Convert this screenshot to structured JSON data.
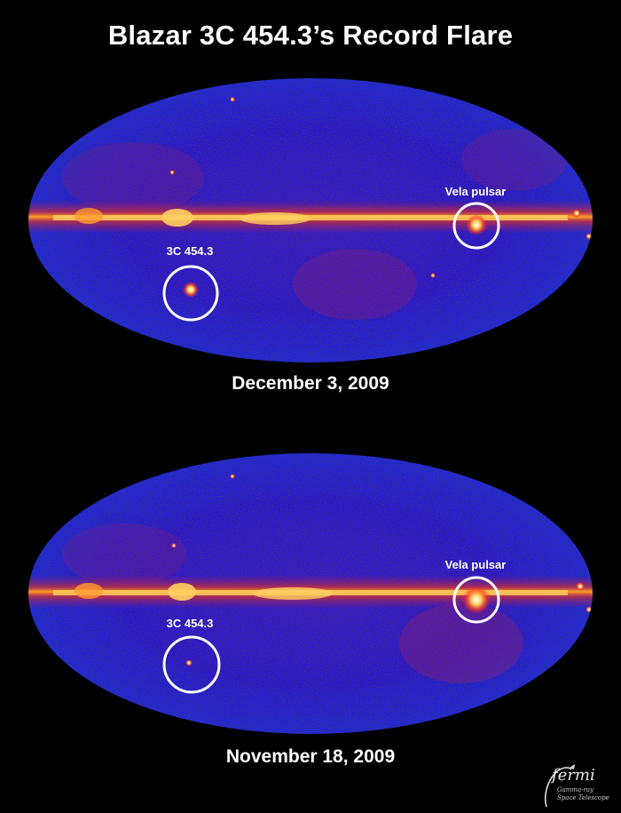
{
  "title": "Blazar 3C 454.3’s Record Flare",
  "panels": [
    {
      "date": "December 3, 2009",
      "labels": {
        "blazar": "3C 454.3",
        "pulsar": "Vela pulsar"
      }
    },
    {
      "date": "November 18, 2009",
      "labels": {
        "blazar": "3C 454.3",
        "pulsar": "Vela pulsar"
      }
    }
  ],
  "logo": {
    "word": "fermi",
    "line1": "Gamma-ray",
    "line2": "Space Telescope"
  },
  "colors": {
    "background": "#000000",
    "sky": "#1a10c8",
    "plane": "#ff8a1a",
    "hot": "#ffffb0",
    "marker": "#ffffff"
  }
}
